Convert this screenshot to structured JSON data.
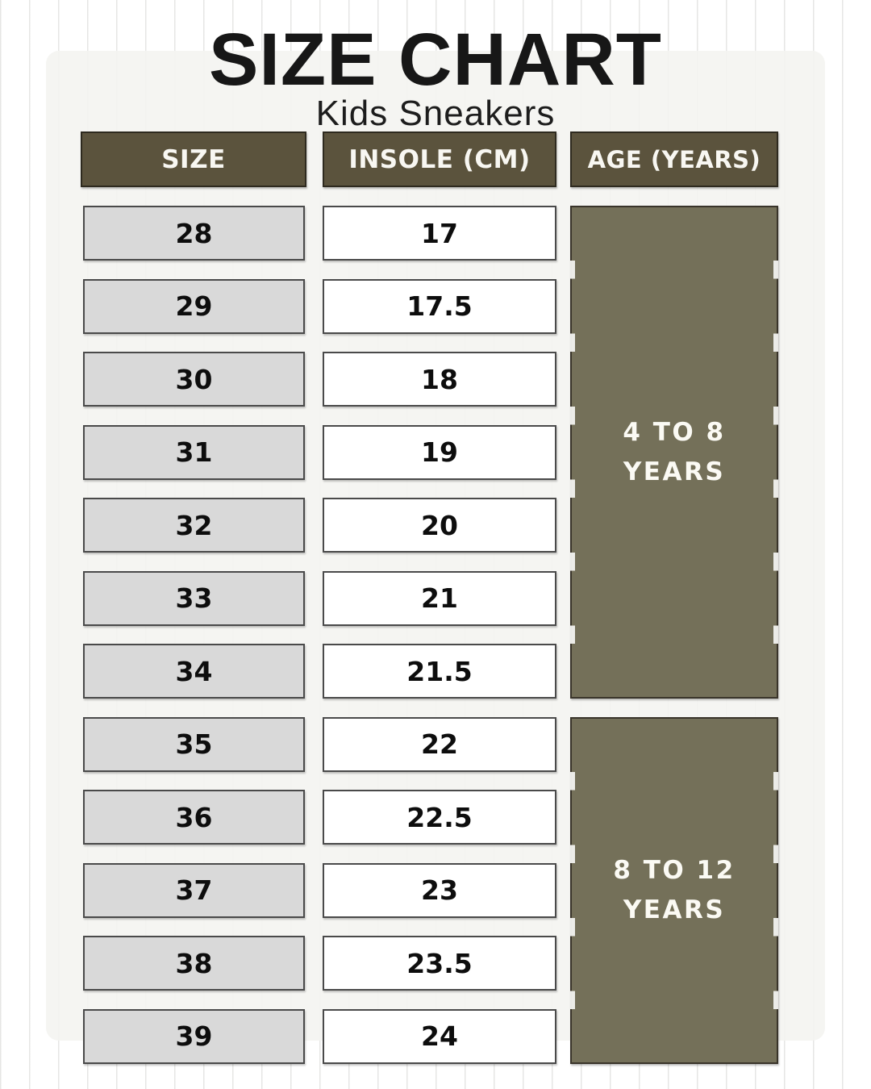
{
  "header": {
    "title": "SIZE CHART",
    "subtitle": "Kids Sneakers"
  },
  "table": {
    "columns": [
      "SIZE",
      "INSOLE (CM)",
      "AGE (YEARS)"
    ],
    "rows": [
      {
        "size": "28",
        "insole": "17"
      },
      {
        "size": "29",
        "insole": "17.5"
      },
      {
        "size": "30",
        "insole": "18"
      },
      {
        "size": "31",
        "insole": "19"
      },
      {
        "size": "32",
        "insole": "20"
      },
      {
        "size": "33",
        "insole": "21"
      },
      {
        "size": "34",
        "insole": "21.5"
      },
      {
        "size": "35",
        "insole": "22"
      },
      {
        "size": "36",
        "insole": "22.5"
      },
      {
        "size": "37",
        "insole": "23"
      },
      {
        "size": "38",
        "insole": "23.5"
      },
      {
        "size": "39",
        "insole": "24"
      }
    ],
    "age_groups": [
      {
        "label_line1": "4 TO 8",
        "label_line2": "YEARS",
        "rows": 7
      },
      {
        "label_line1": "8 TO 12",
        "label_line2": "YEARS",
        "rows": 5
      }
    ]
  },
  "colors": {
    "header_olive": "#5b533d",
    "age_olive": "#747059",
    "size_cell_gray": "#d9d9d9",
    "insole_cell_white": "#ffffff",
    "title_black": "#171717",
    "paper": "#f4f4f1"
  }
}
